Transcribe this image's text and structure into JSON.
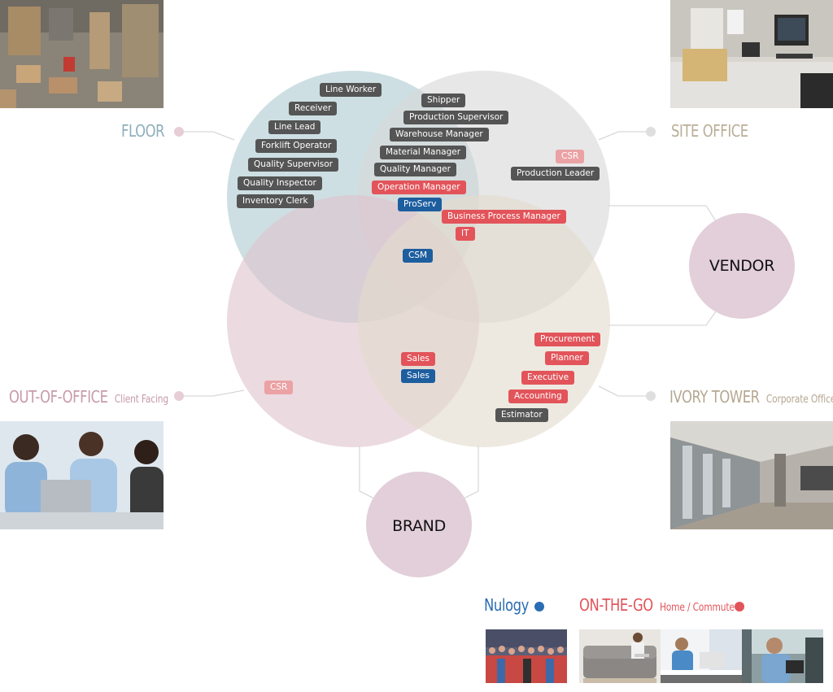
{
  "colors": {
    "floor_circle": "#b8d2d7",
    "site_office_circle": "#d9d9d9",
    "out_of_office_circle": "#dfc3cd",
    "ivory_tower_circle": "#e3dccd",
    "vendor_circle": "#e2cfd9",
    "brand_circle": "#e2cfd9",
    "tag_gray": "#555556",
    "tag_red": "#e2545a",
    "tag_blue": "#1d5e9f",
    "tag_pink": "#eba2a4",
    "floor_title": "#8daebb",
    "site_office_title": "#b9ad97",
    "out_of_office_title": "#c79aa8",
    "ivory_tower_title": "#b5a791",
    "nulogy_legend": "#2a6db3",
    "on_the_go_legend": "#e2545a"
  },
  "zones": {
    "floor": {
      "title": "FLOOR",
      "photo": "warehouse-floor-photo"
    },
    "site_office": {
      "title": "SITE OFFICE",
      "photo": "office-cubicle-photo"
    },
    "out_of_office": {
      "title": "OUT-OF-OFFICE",
      "subtitle": "Client Facing",
      "photo": "client-meeting-photo"
    },
    "ivory_tower": {
      "title": "IVORY TOWER",
      "subtitle": "Corporate Office",
      "photo": "corporate-hallway-photo"
    }
  },
  "circles": {
    "vendor": "VENDOR",
    "brand": "BRAND"
  },
  "roles": {
    "floor": [
      "Line Worker",
      "Receiver",
      "Line Lead",
      "Forklift Operator",
      "Quality Supervisor",
      "Quality Inspector",
      "Inventory Clerk"
    ],
    "floor_site_office": [
      "Shipper",
      "Production Supervisor",
      "Warehouse Manager",
      "Material Manager",
      "Quality Manager"
    ],
    "operation_manager": "Operation Manager",
    "proserv": "ProServ",
    "business_process_manager": "Business Process Manager",
    "it": "IT",
    "csm": "CSM",
    "site_office_csr": "CSR",
    "production_leader": "Production Leader",
    "out_of_office_csr": "CSR",
    "sales_red": "Sales",
    "sales_blue": "Sales",
    "ivory_tower_red": [
      "Procurement",
      "Planner",
      "Executive",
      "Accounting"
    ],
    "estimator": "Estimator"
  },
  "legend": {
    "nulogy": "Nulogy",
    "on_the_go": "ON-THE-GO",
    "on_the_go_subtitle": "Home / Commute"
  }
}
